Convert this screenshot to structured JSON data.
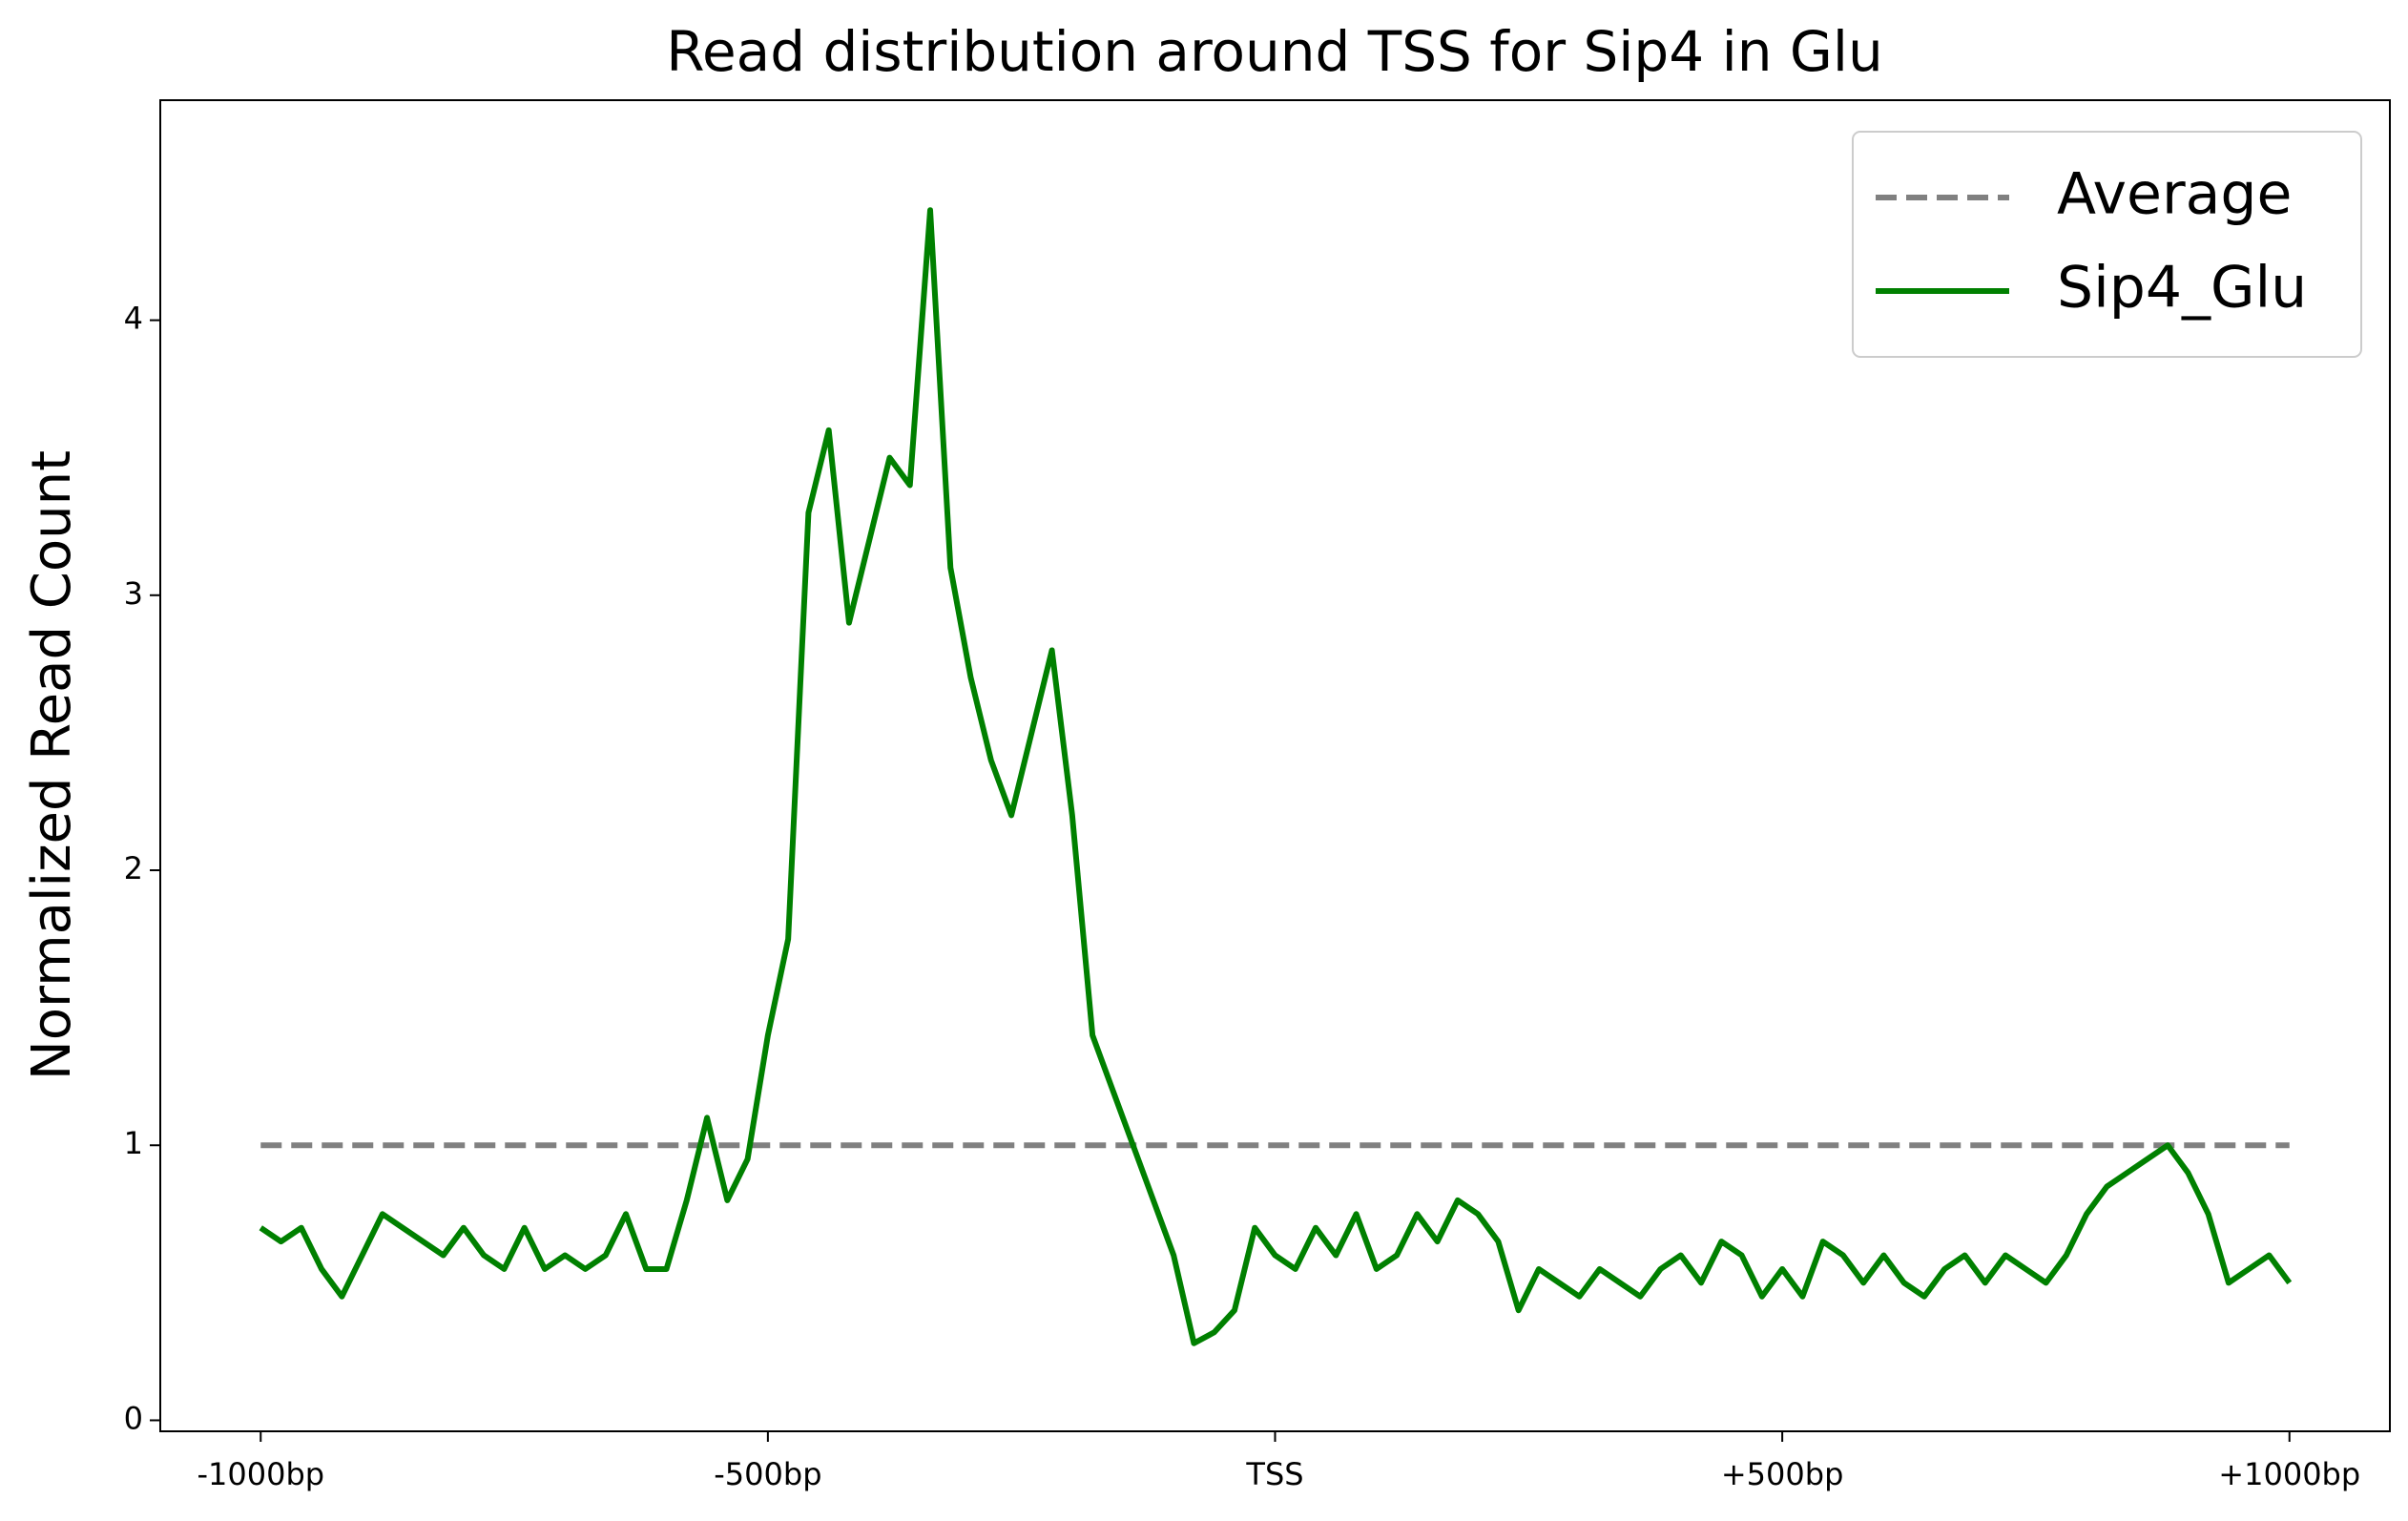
{
  "chart_data": {
    "type": "line",
    "title": "Read distribution around TSS for Sip4 in Glu",
    "ylabel": "Normalized Read Count",
    "xlim": [
      -1099,
      1099
    ],
    "ylim": [
      -0.04,
      4.8
    ],
    "xticks": [
      {
        "value": -1000,
        "label": "-1000bp"
      },
      {
        "value": -500,
        "label": "-500bp"
      },
      {
        "value": 0,
        "label": "TSS"
      },
      {
        "value": 500,
        "label": "+500bp"
      },
      {
        "value": 1000,
        "label": "+1000bp"
      }
    ],
    "yticks": [
      0,
      1,
      2,
      3,
      4
    ],
    "grid": false,
    "legend": "upper right",
    "series": [
      {
        "name": "Average",
        "color": "#808080",
        "dashed": true,
        "x": [
          -1000,
          1000
        ],
        "values": [
          1,
          1
        ]
      },
      {
        "name": "Sip4_Glu",
        "color": "#008000",
        "dashed": false,
        "x": [
          -1000,
          -980,
          -960,
          -940,
          -920,
          -900,
          -880,
          -860,
          -840,
          -820,
          -800,
          -780,
          -760,
          -740,
          -720,
          -700,
          -680,
          -660,
          -640,
          -620,
          -600,
          -580,
          -560,
          -540,
          -520,
          -500,
          -480,
          -460,
          -440,
          -420,
          -400,
          -380,
          -360,
          -340,
          -320,
          -300,
          -280,
          -260,
          -240,
          -220,
          -200,
          -180,
          -160,
          -140,
          -120,
          -100,
          -80,
          -60,
          -40,
          -20,
          0,
          20,
          40,
          60,
          80,
          100,
          120,
          140,
          160,
          180,
          200,
          220,
          240,
          260,
          280,
          300,
          320,
          340,
          360,
          380,
          400,
          420,
          440,
          460,
          480,
          500,
          520,
          540,
          560,
          580,
          600,
          620,
          640,
          660,
          680,
          700,
          720,
          740,
          760,
          780,
          800,
          820,
          840,
          860,
          880,
          900,
          920,
          940,
          960,
          980,
          1000
        ],
        "values": [
          0.7,
          0.65,
          0.7,
          0.55,
          0.45,
          0.6,
          0.75,
          0.7,
          0.65,
          0.6,
          0.7,
          0.6,
          0.55,
          0.7,
          0.55,
          0.6,
          0.55,
          0.6,
          0.75,
          0.55,
          0.55,
          0.8,
          1.1,
          0.8,
          0.95,
          1.4,
          1.75,
          3.3,
          3.6,
          2.9,
          3.2,
          3.5,
          3.4,
          4.4,
          3.1,
          2.7,
          2.4,
          2.2,
          2.5,
          2.8,
          2.2,
          1.4,
          1.2,
          1.0,
          0.8,
          0.6,
          0.28,
          0.32,
          0.4,
          0.7,
          0.6,
          0.55,
          0.7,
          0.6,
          0.75,
          0.55,
          0.6,
          0.75,
          0.65,
          0.8,
          0.75,
          0.65,
          0.4,
          0.55,
          0.5,
          0.45,
          0.55,
          0.5,
          0.45,
          0.55,
          0.6,
          0.5,
          0.65,
          0.6,
          0.45,
          0.55,
          0.45,
          0.65,
          0.6,
          0.5,
          0.6,
          0.5,
          0.45,
          0.55,
          0.6,
          0.5,
          0.6,
          0.55,
          0.5,
          0.6,
          0.75,
          0.85,
          0.9,
          0.95,
          1.0,
          0.9,
          0.75,
          0.5,
          0.55,
          0.6,
          0.5
        ]
      }
    ]
  }
}
